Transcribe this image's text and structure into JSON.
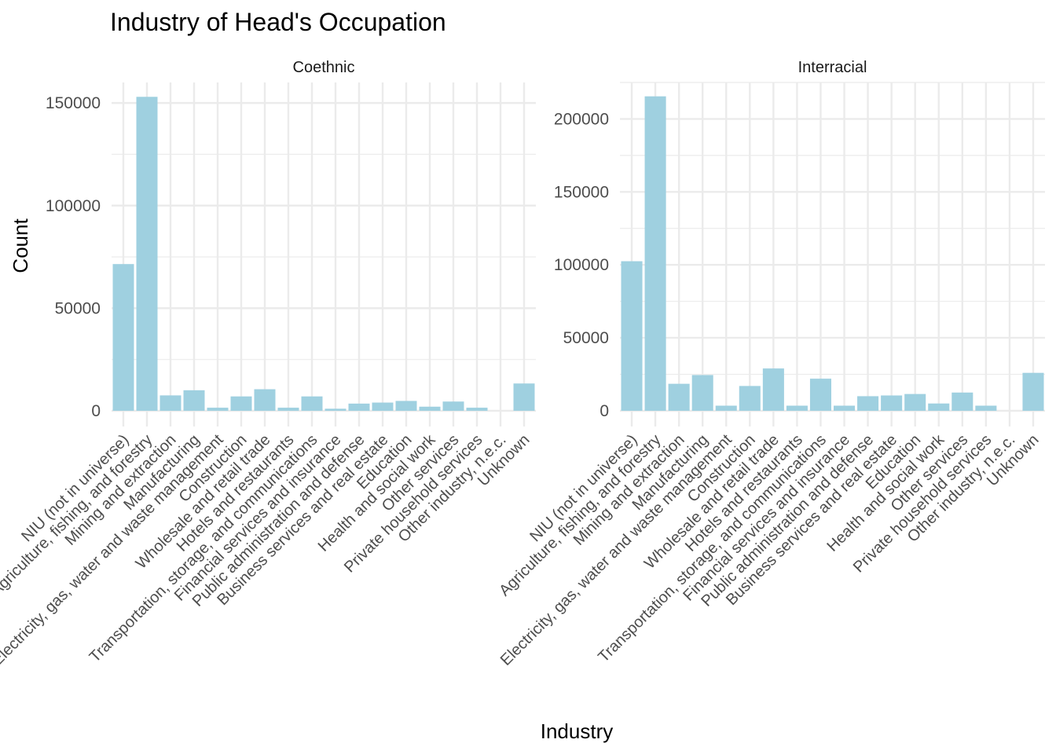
{
  "chart_data": {
    "type": "bar",
    "title": "Industry of Head's Occupation",
    "xlabel": "Industry",
    "ylabel": "Count",
    "bar_color": "#9FD0E0",
    "grid_color": "#EBEBEB",
    "categories": [
      "NIU (not in universe)",
      "Agriculture, fishing, and forestry",
      "Mining and extraction",
      "Manufacturing",
      "Electricity, gas, water and waste management",
      "Construction",
      "Wholesale and retail trade",
      "Hotels and restaurants",
      "Transportation, storage, and communications",
      "Financial services and insurance",
      "Public administration and defense",
      "Business services and real estate",
      "Education",
      "Health and social work",
      "Other services",
      "Private household services",
      "Other industry, n.e.c.",
      "Unknown"
    ],
    "panels": [
      {
        "name": "Coethnic",
        "ylim": [
          0,
          160000
        ],
        "yticks": [
          0,
          50000,
          100000,
          150000
        ],
        "ytick_labels": [
          "0",
          "50000",
          "100000",
          "150000"
        ],
        "values": [
          71500,
          153000,
          7500,
          10000,
          1500,
          7000,
          10500,
          1500,
          7000,
          1000,
          3500,
          4000,
          4800,
          2000,
          4500,
          1500,
          0,
          13300
        ]
      },
      {
        "name": "Interracial",
        "ylim": [
          0,
          225000
        ],
        "yticks": [
          0,
          50000,
          100000,
          150000,
          200000
        ],
        "ytick_labels": [
          "0",
          "50000",
          "100000",
          "150000",
          "200000"
        ],
        "values": [
          102500,
          215500,
          18500,
          24500,
          3500,
          17000,
          29000,
          3500,
          22000,
          3500,
          10000,
          10500,
          11500,
          5000,
          12500,
          3500,
          0,
          26000
        ]
      }
    ]
  }
}
